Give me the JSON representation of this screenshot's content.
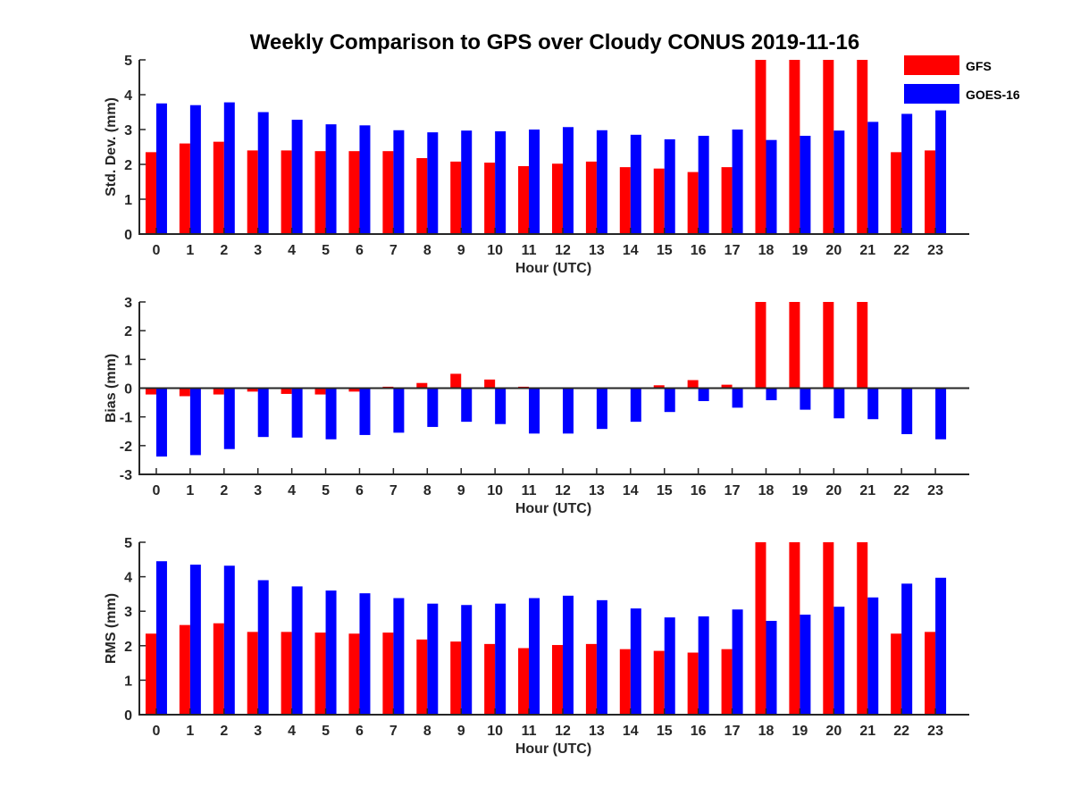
{
  "chart_data": {
    "type": "bar",
    "title": "Weekly Comparison to GPS over Cloudy CONUS 2019-11-16",
    "legend": {
      "placement": "top-right",
      "entries": [
        {
          "label": "GFS",
          "color": "#ff0000"
        },
        {
          "label": "GOES-16",
          "color": "#0000ff"
        }
      ]
    },
    "panels": [
      {
        "id": "stddev",
        "ylabel": "Std. Dev. (mm)",
        "xlabel": "Hour (UTC)",
        "ylim": [
          0,
          5
        ],
        "yticks": [
          0,
          1,
          2,
          3,
          4,
          5
        ],
        "categories": [
          "0",
          "1",
          "2",
          "3",
          "4",
          "5",
          "6",
          "7",
          "8",
          "9",
          "10",
          "11",
          "12",
          "13",
          "14",
          "15",
          "16",
          "17",
          "18",
          "19",
          "20",
          "21",
          "22",
          "23"
        ],
        "series": [
          {
            "name": "GFS",
            "color": "#ff0000",
            "values": [
              2.35,
              2.6,
              2.65,
              2.4,
              2.4,
              2.38,
              2.38,
              2.38,
              2.18,
              2.08,
              2.05,
              1.95,
              2.02,
              2.08,
              1.92,
              1.88,
              1.78,
              1.92,
              5,
              5,
              5,
              5,
              2.35,
              2.4
            ]
          },
          {
            "name": "GOES-16",
            "color": "#0000ff",
            "values": [
              3.75,
              3.7,
              3.78,
              3.5,
              3.28,
              3.15,
              3.12,
              2.98,
              2.92,
              2.97,
              2.95,
              3.0,
              3.07,
              2.98,
              2.85,
              2.72,
              2.82,
              3.0,
              2.7,
              2.82,
              2.97,
              3.22,
              3.45,
              3.55
            ]
          }
        ]
      },
      {
        "id": "bias",
        "ylabel": "Bias (mm)",
        "xlabel": "Hour (UTC)",
        "ylim": [
          -3,
          3
        ],
        "yticks": [
          -3,
          -2,
          -1,
          0,
          1,
          2,
          3
        ],
        "categories": [
          "0",
          "1",
          "2",
          "3",
          "4",
          "5",
          "6",
          "7",
          "8",
          "9",
          "10",
          "11",
          "12",
          "13",
          "14",
          "15",
          "16",
          "17",
          "18",
          "19",
          "20",
          "21",
          "22",
          "23"
        ],
        "series": [
          {
            "name": "GFS",
            "color": "#ff0000",
            "values": [
              -0.22,
              -0.28,
              -0.22,
              -0.12,
              -0.2,
              -0.22,
              -0.12,
              0.05,
              0.18,
              0.5,
              0.3,
              0.05,
              0.03,
              0.0,
              -0.02,
              0.1,
              0.28,
              0.12,
              3,
              3,
              3,
              3,
              0.03,
              0.0
            ]
          },
          {
            "name": "GOES-16",
            "color": "#0000ff",
            "values": [
              -2.38,
              -2.33,
              -2.12,
              -1.7,
              -1.72,
              -1.78,
              -1.63,
              -1.55,
              -1.35,
              -1.17,
              -1.25,
              -1.58,
              -1.58,
              -1.42,
              -1.17,
              -0.83,
              -0.45,
              -0.68,
              -0.42,
              -0.75,
              -1.05,
              -1.08,
              -1.6,
              -1.78
            ]
          }
        ]
      },
      {
        "id": "rms",
        "ylabel": "RMS (mm)",
        "xlabel": "Hour (UTC)",
        "ylim": [
          0,
          5
        ],
        "yticks": [
          0,
          1,
          2,
          3,
          4,
          5
        ],
        "categories": [
          "0",
          "1",
          "2",
          "3",
          "4",
          "5",
          "6",
          "7",
          "8",
          "9",
          "10",
          "11",
          "12",
          "13",
          "14",
          "15",
          "16",
          "17",
          "18",
          "19",
          "20",
          "21",
          "22",
          "23"
        ],
        "series": [
          {
            "name": "GFS",
            "color": "#ff0000",
            "values": [
              2.35,
              2.6,
              2.65,
              2.4,
              2.4,
              2.38,
              2.35,
              2.38,
              2.18,
              2.12,
              2.05,
              1.93,
              2.02,
              2.05,
              1.9,
              1.85,
              1.8,
              1.9,
              5,
              5,
              5,
              5,
              2.35,
              2.4
            ]
          },
          {
            "name": "GOES-16",
            "color": "#0000ff",
            "values": [
              4.45,
              4.35,
              4.32,
              3.9,
              3.72,
              3.6,
              3.52,
              3.38,
              3.22,
              3.18,
              3.22,
              3.38,
              3.45,
              3.32,
              3.08,
              2.82,
              2.85,
              3.05,
              2.72,
              2.9,
              3.13,
              3.4,
              3.8,
              3.97
            ]
          }
        ]
      }
    ]
  }
}
